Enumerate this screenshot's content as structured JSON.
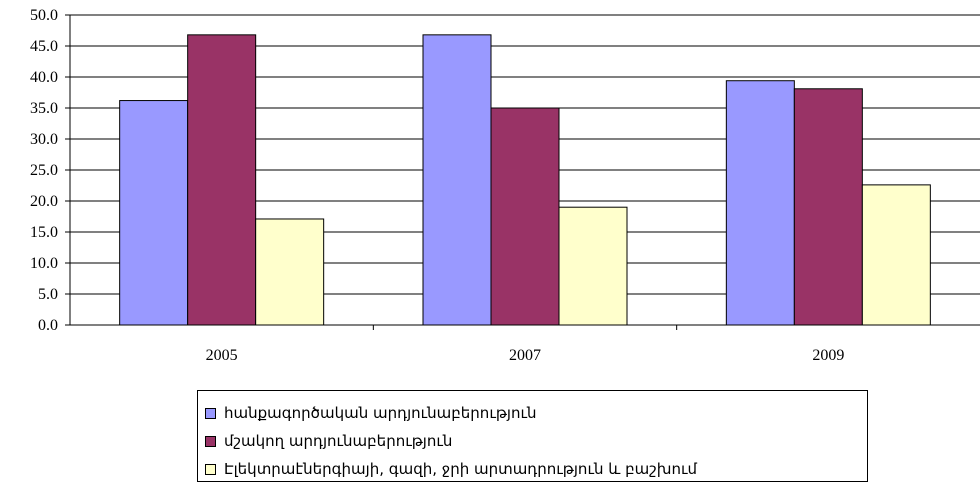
{
  "chart_data": {
    "type": "bar",
    "title": "",
    "xlabel": "",
    "ylabel": "",
    "categories": [
      "2005",
      "2007",
      "2009"
    ],
    "ylim": [
      0,
      50
    ],
    "ytick_step": 5,
    "ytick_labels": [
      "0.0",
      "5.0",
      "10.0",
      "15.0",
      "20.0",
      "25.0",
      "30.0",
      "35.0",
      "40.0",
      "45.0",
      "50.0"
    ],
    "grid": true,
    "legend_position": "bottom",
    "series": [
      {
        "name": "հանքագործական արդյունաբերություն",
        "values": [
          36.2,
          46.8,
          39.4
        ],
        "color": "#9999ff"
      },
      {
        "name": "մշակող արդյունաբերություն",
        "values": [
          46.8,
          35.0,
          38.1
        ],
        "color": "#993366"
      },
      {
        "name": "Էլեկտրաէներգիայի, գազի, ջրի արտադրություն և բաշխում",
        "values": [
          17.1,
          19.0,
          22.6
        ],
        "color": "#ffffcc"
      }
    ]
  }
}
